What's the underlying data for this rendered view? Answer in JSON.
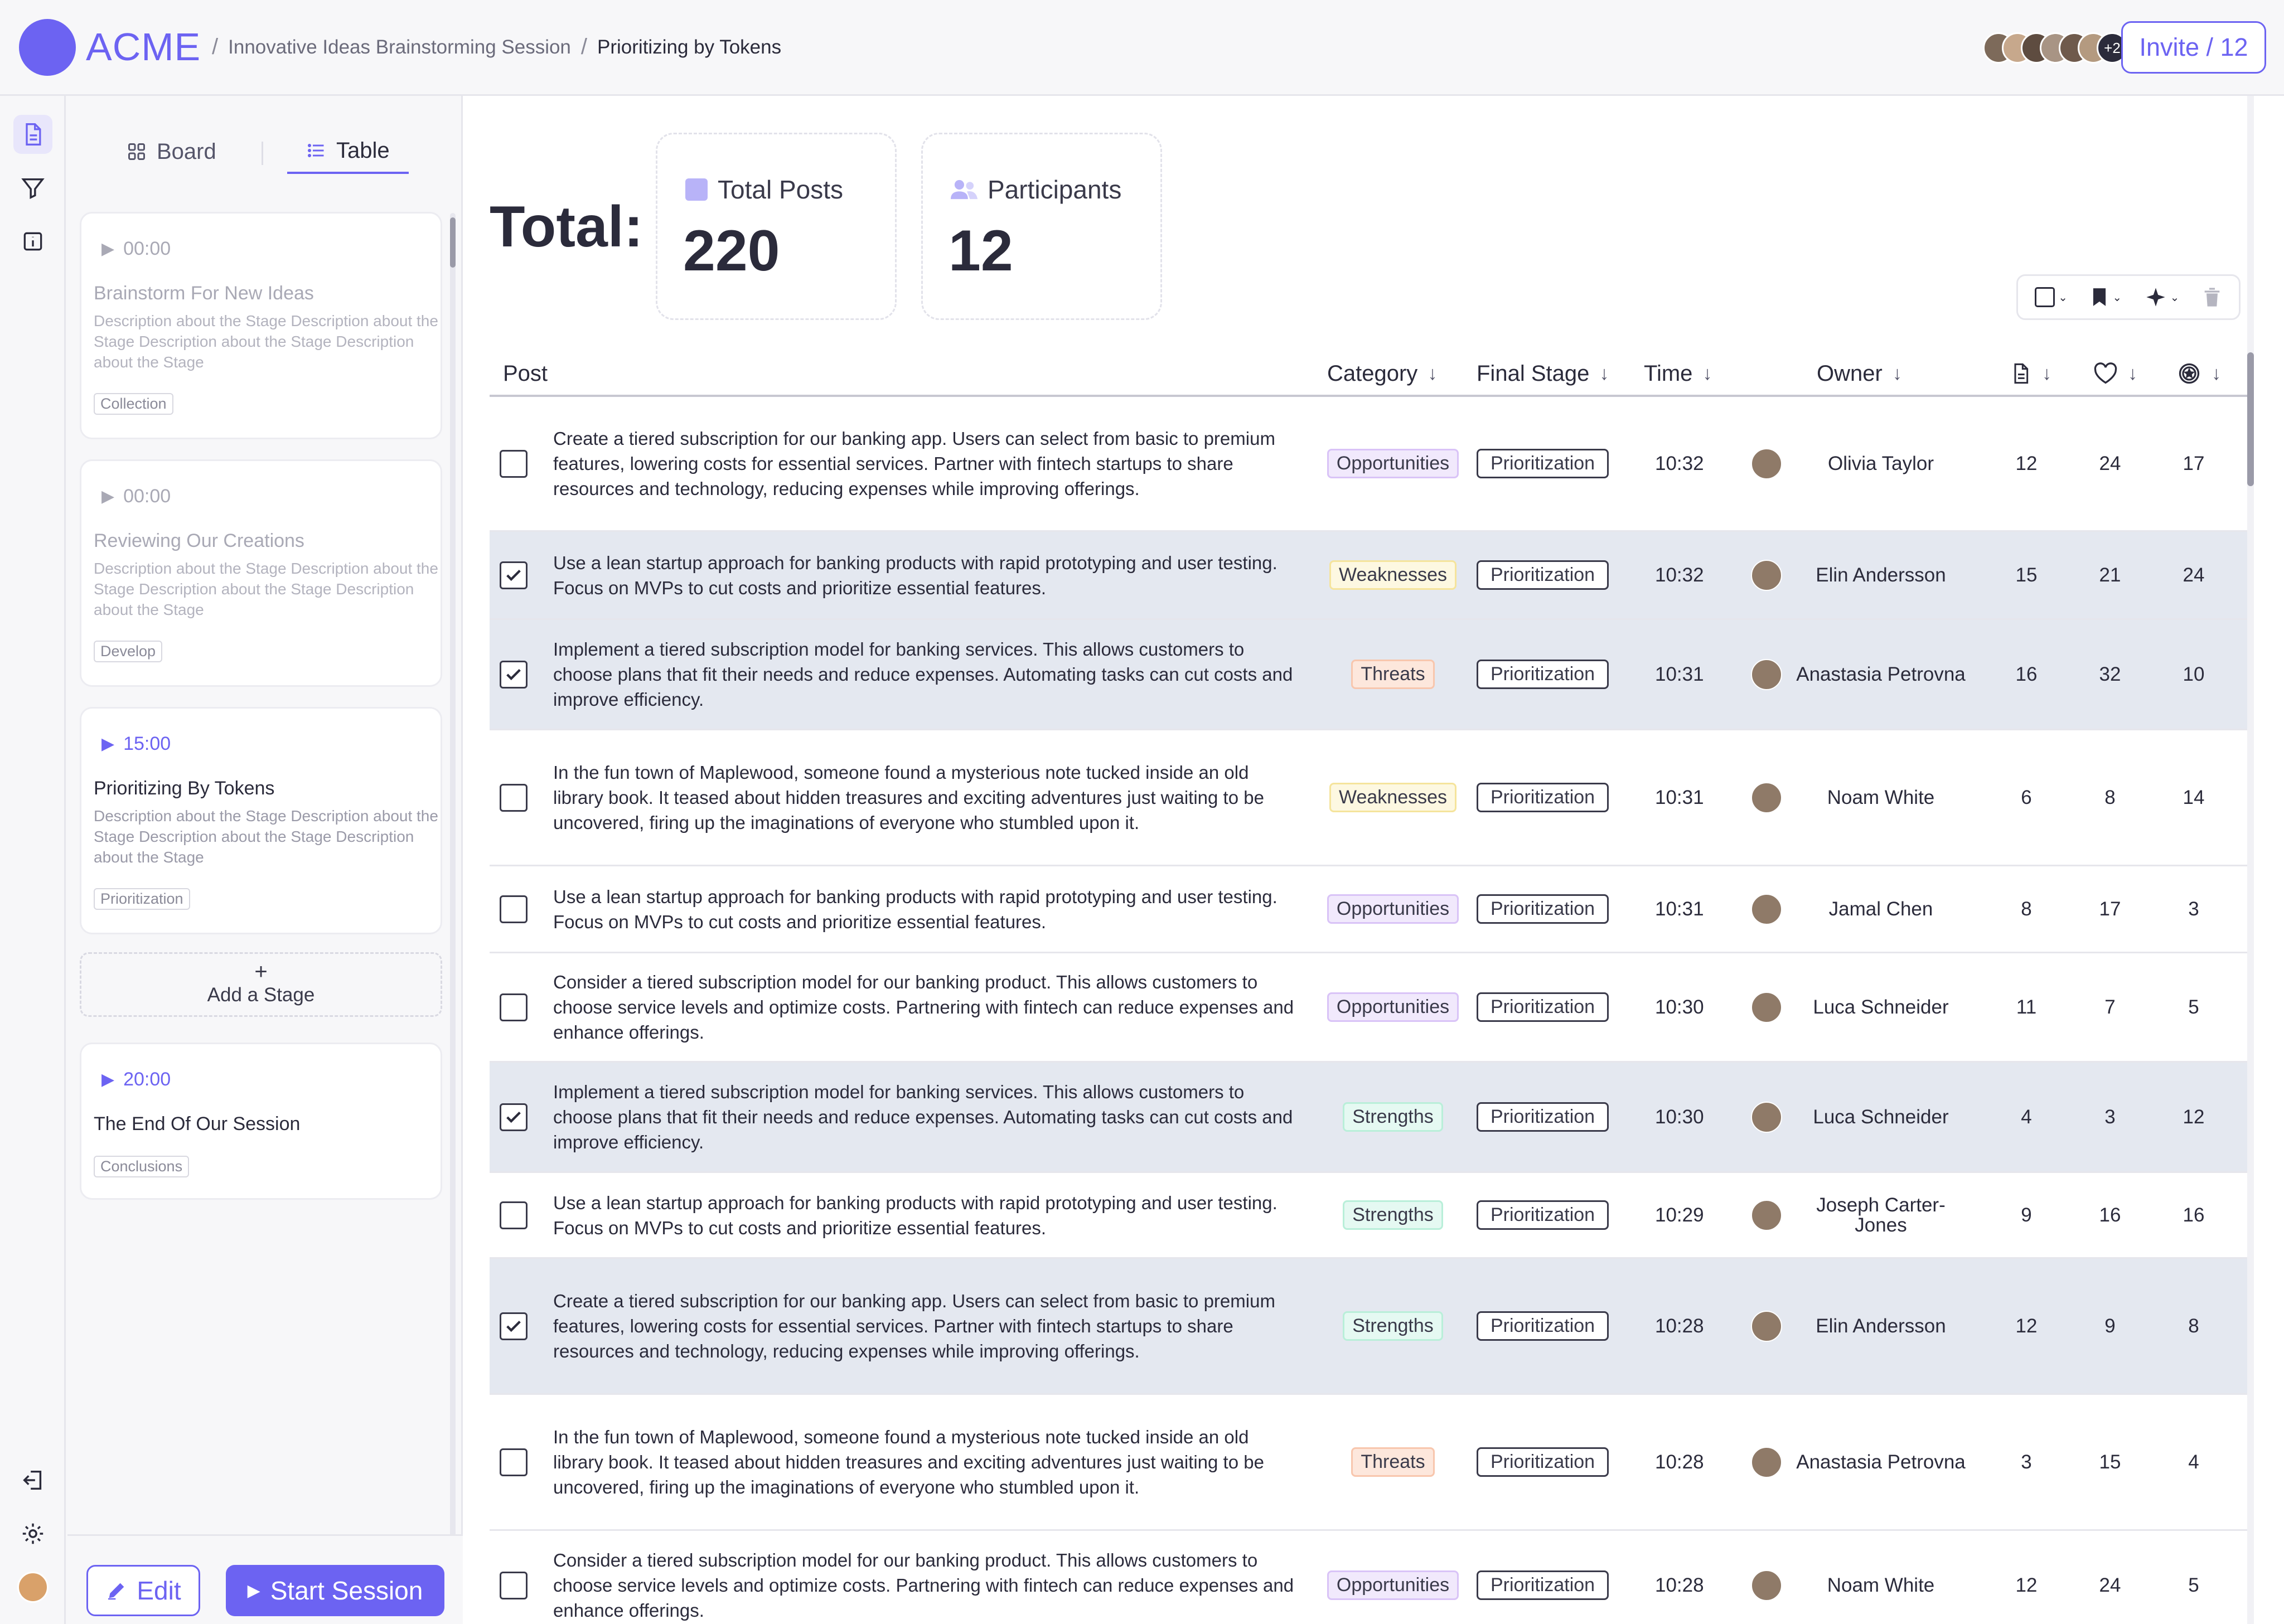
{
  "header": {
    "logo_text": "ACME",
    "breadcrumb": [
      "Innovative Ideas Brainstorming Session",
      "Prioritizing by Tokens"
    ],
    "avatars_more": "+2",
    "invite_label": "Invite / 12"
  },
  "rail": {
    "icons": [
      "document-icon",
      "filter-icon",
      "info-icon"
    ],
    "bottom_icons": [
      "logout-icon",
      "gear-icon",
      "user-avatar"
    ]
  },
  "sidebar": {
    "tabs": [
      {
        "label": "Board",
        "icon": "board-icon",
        "active": false
      },
      {
        "label": "Table",
        "icon": "list-icon",
        "active": true
      }
    ],
    "stages": [
      {
        "time": "00:00",
        "title": "Brainstorm For New Ideas",
        "description": "Description about the Stage Description about the Stage Description about the Stage Description about the Stage",
        "tag": "Collection",
        "active": false
      },
      {
        "time": "00:00",
        "title": "Reviewing Our Creations",
        "description": "Description about the Stage Description about the Stage Description about the Stage Description about the Stage",
        "tag": "Develop",
        "active": false
      },
      {
        "time": "15:00",
        "title": "Prioritizing By Tokens",
        "description": "Description about the Stage Description about the Stage Description about the Stage Description about the Stage",
        "tag": "Prioritization",
        "active": true
      }
    ],
    "add_stage_label": "Add a Stage",
    "final_stage": {
      "time": "20:00",
      "title": "The End Of Our Session",
      "tag": "Conclusions"
    },
    "edit_label": "Edit",
    "start_label": "Start Session"
  },
  "summary": {
    "total_label": "Total:",
    "total_posts_label": "Total Posts",
    "total_posts_value": "220",
    "participants_label": "Participants",
    "participants_value": "12"
  },
  "toolbar": {
    "icons": [
      "checkbox-icon",
      "bookmark-icon",
      "sparkle-icon",
      "trash-icon"
    ]
  },
  "table": {
    "columns": {
      "post": "Post",
      "category": "Category",
      "final_stage": "Final Stage",
      "time": "Time",
      "owner": "Owner",
      "posts_icon": "document-icon",
      "likes_icon": "heart-icon",
      "tokens_icon": "token-icon"
    },
    "rows": [
      {
        "checked": false,
        "post": "Create a tiered subscription for our banking app. Users can select from basic to premium features, lowering costs for essential services. Partner with fintech startups to share resources and technology, reducing expenses while improving offerings.",
        "category": "Opportunities",
        "stage": "Prioritization",
        "time": "10:32",
        "owner": "Olivia Taylor",
        "a": "12",
        "b": "24",
        "c": "17"
      },
      {
        "checked": true,
        "post": "Use a lean startup approach for banking products with rapid prototyping and user testing. Focus on MVPs to cut costs and prioritize essential features.",
        "category": "Weaknesses",
        "stage": "Prioritization",
        "time": "10:32",
        "owner": "Elin Andersson",
        "a": "15",
        "b": "21",
        "c": "24"
      },
      {
        "checked": true,
        "post": "Implement a tiered subscription model for banking services. This allows customers to choose plans that fit their needs and reduce expenses. Automating tasks can cut costs and improve efficiency.",
        "category": "Threats",
        "stage": "Prioritization",
        "time": "10:31",
        "owner": "Anastasia Petrovna",
        "a": "16",
        "b": "32",
        "c": "10"
      },
      {
        "checked": false,
        "post": "In the fun town of Maplewood, someone found a mysterious note tucked inside an old library book. It teased about hidden treasures and exciting adventures just waiting to be uncovered, firing up the imaginations of everyone who stumbled upon it.",
        "category": "Weaknesses",
        "stage": "Prioritization",
        "time": "10:31",
        "owner": "Noam White",
        "a": "6",
        "b": "8",
        "c": "14"
      },
      {
        "checked": false,
        "post": "Use a lean startup approach for banking products with rapid prototyping and user testing. Focus on MVPs to cut costs and prioritize essential features.",
        "category": "Opportunities",
        "stage": "Prioritization",
        "time": "10:31",
        "owner": "Jamal Chen",
        "a": "8",
        "b": "17",
        "c": "3"
      },
      {
        "checked": false,
        "post": "Consider a tiered subscription model for our banking product. This allows customers to choose service levels and optimize costs. Partnering with fintech can reduce expenses and enhance offerings.",
        "category": "Opportunities",
        "stage": "Prioritization",
        "time": "10:30",
        "owner": "Luca Schneider",
        "a": "11",
        "b": "7",
        "c": "5"
      },
      {
        "checked": true,
        "post": "Implement a tiered subscription model for banking services. This allows customers to choose plans that fit their needs and reduce expenses. Automating tasks can cut costs and improve efficiency.",
        "category": "Strengths",
        "stage": "Prioritization",
        "time": "10:30",
        "owner": "Luca Schneider",
        "a": "4",
        "b": "3",
        "c": "12"
      },
      {
        "checked": false,
        "post": "Use a lean startup approach for banking products with rapid prototyping and user testing. Focus on MVPs to cut costs and prioritize essential features.",
        "category": "Strengths",
        "stage": "Prioritization",
        "time": "10:29",
        "owner": "Joseph Carter-Jones",
        "a": "9",
        "b": "16",
        "c": "16"
      },
      {
        "checked": true,
        "post": "Create a tiered subscription for our banking app. Users can select from basic to premium features, lowering costs for essential services. Partner with fintech startups to share resources and technology, reducing expenses while improving offerings.",
        "category": "Strengths",
        "stage": "Prioritization",
        "time": "10:28",
        "owner": "Elin Andersson",
        "a": "12",
        "b": "9",
        "c": "8"
      },
      {
        "checked": false,
        "post": "In the fun town of Maplewood, someone found a mysterious note tucked inside an old library book. It teased about hidden treasures and exciting adventures just waiting to be uncovered, firing up the imaginations of everyone who stumbled upon it.",
        "category": "Threats",
        "stage": "Prioritization",
        "time": "10:28",
        "owner": "Anastasia Petrovna",
        "a": "3",
        "b": "15",
        "c": "4"
      },
      {
        "checked": false,
        "post": "Consider a tiered subscription model for our banking product. This allows customers to choose service levels and optimize costs. Partnering with fintech can reduce expenses and enhance offerings.",
        "category": "Opportunities",
        "stage": "Prioritization",
        "time": "10:28",
        "owner": "Noam White",
        "a": "12",
        "b": "24",
        "c": "5"
      }
    ]
  },
  "colors": {
    "accent": "#6c63f2",
    "selected_row": "#e4e8f0"
  }
}
